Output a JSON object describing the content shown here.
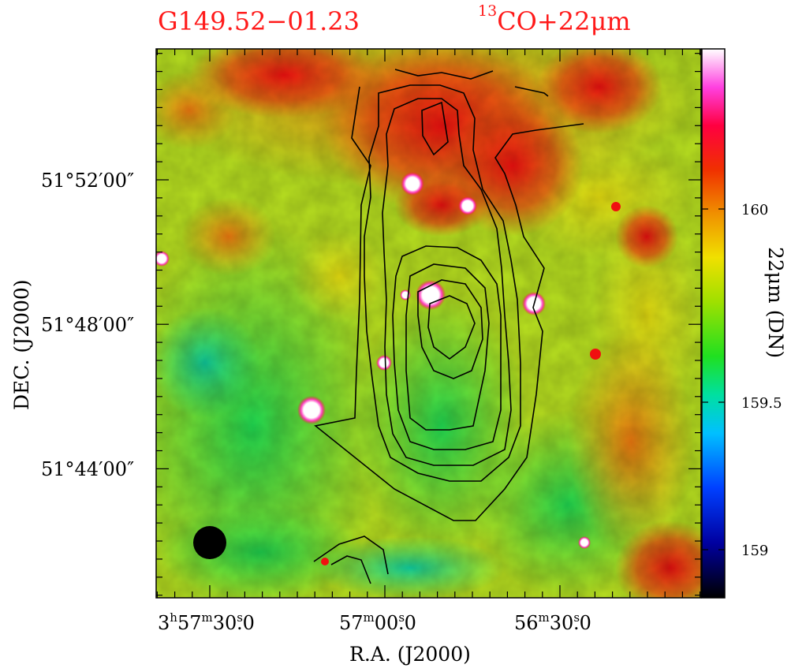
{
  "header": {
    "source_name": "G149.52−01.23",
    "tracer_sup": "13",
    "tracer_main": "CO+22μm"
  },
  "chart_data": {
    "type": "heatmap",
    "title": "G149.52−01.23",
    "subtitle": "13CO+22μm",
    "xlabel": "R.A. (J2000)",
    "ylabel": "DEC. (J2000)",
    "x_ticks": [
      {
        "h": "3",
        "m": "57",
        "s": "30",
        "frac": ".0"
      },
      {
        "h": "",
        "m": "57",
        "s": "00",
        "frac": ".0"
      },
      {
        "h": "",
        "m": "56",
        "s": "30",
        "frac": ".0"
      }
    ],
    "y_ticks": [
      "51°52′00″",
      "51°48′00″",
      "51°44′00″"
    ],
    "colorbar": {
      "label": "22μm (DN)",
      "ticks": [
        "160",
        "159.5",
        "159"
      ],
      "range": [
        158.88,
        160.38
      ]
    },
    "overlay": "13CO integrated intensity contours (black)",
    "beam": "filled circle, lower-left"
  },
  "colors": {
    "title": "#ff1a1a",
    "contour": "#000000",
    "frame": "#000000"
  }
}
